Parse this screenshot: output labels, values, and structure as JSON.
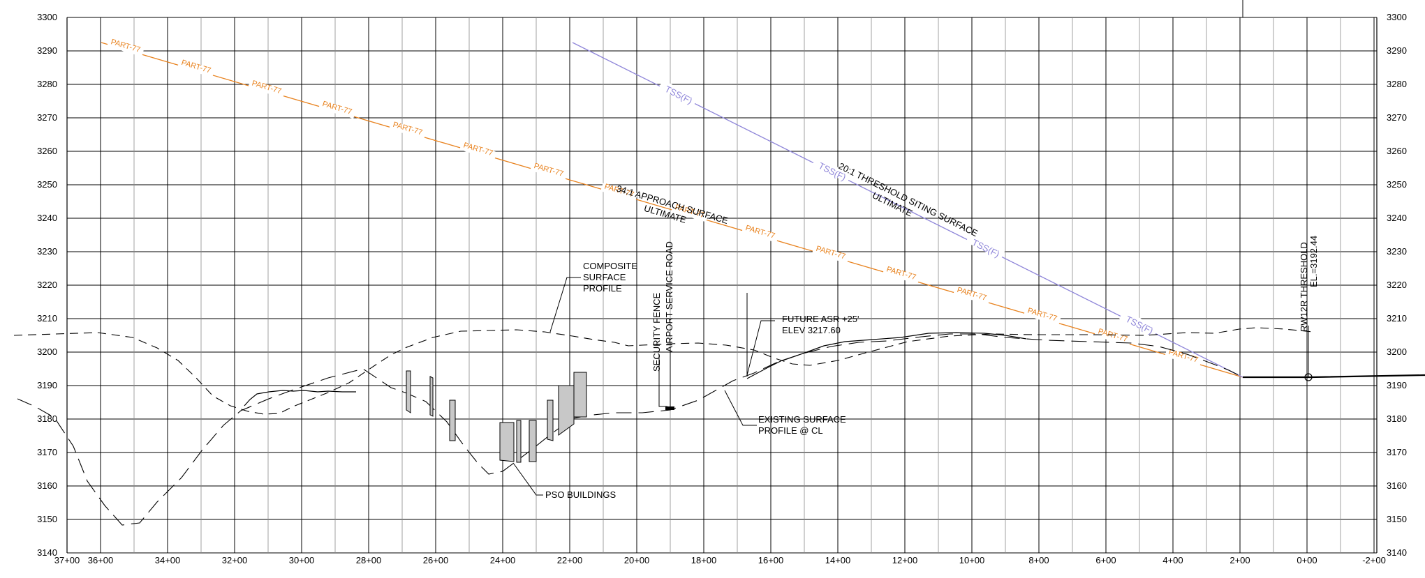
{
  "profile": {
    "elevation_labels": [
      "3300",
      "3290",
      "3280",
      "3270",
      "3260",
      "3250",
      "3240",
      "3230",
      "3220",
      "3210",
      "3200",
      "3190",
      "3180",
      "3170",
      "3160",
      "3150",
      "3140"
    ],
    "station_labels": [
      "37+00",
      "36+00",
      "34+00",
      "32+00",
      "30+00",
      "28+00",
      "26+00",
      "24+00",
      "22+00",
      "20+00",
      "18+00",
      "16+00",
      "14+00",
      "12+00",
      "10+00",
      "8+00",
      "6+00",
      "4+00",
      "2+00",
      "0+00",
      "-2+00"
    ],
    "elevation_range": [
      3140,
      3300
    ],
    "station_range_ft": [
      3700,
      -200
    ],
    "grid": true,
    "colors": {
      "part77": "#e8821e",
      "tss": "#8f86d9",
      "ink": "#000000",
      "building_fill": "#c8c8c8"
    },
    "part77_label": "PART-77",
    "tss_label": "TSS(F)",
    "annotations": {
      "approach_surface": [
        "34:1 APPROACH SURFACE",
        "ULTIMATE"
      ],
      "threshold_siting": [
        "20:1 THRESHOLD SITING SURFACE",
        "ULTIMATE"
      ],
      "composite_profile": [
        "COMPOSITE",
        "SURFACE",
        "PROFILE"
      ],
      "security_fence": "SECURITY FENCE",
      "service_road": "AIRPORT SERVICE ROAD",
      "future_asr": [
        "FUTURE ASR +25'",
        "ELEV 3217.60"
      ],
      "existing_surface": [
        "EXISTING SURFACE",
        "PROFILE @ CL"
      ],
      "pso_buildings": "PSO BUILDINGS",
      "threshold": [
        "RW12R THRESHOLD",
        "EL.=3192.44"
      ]
    }
  }
}
